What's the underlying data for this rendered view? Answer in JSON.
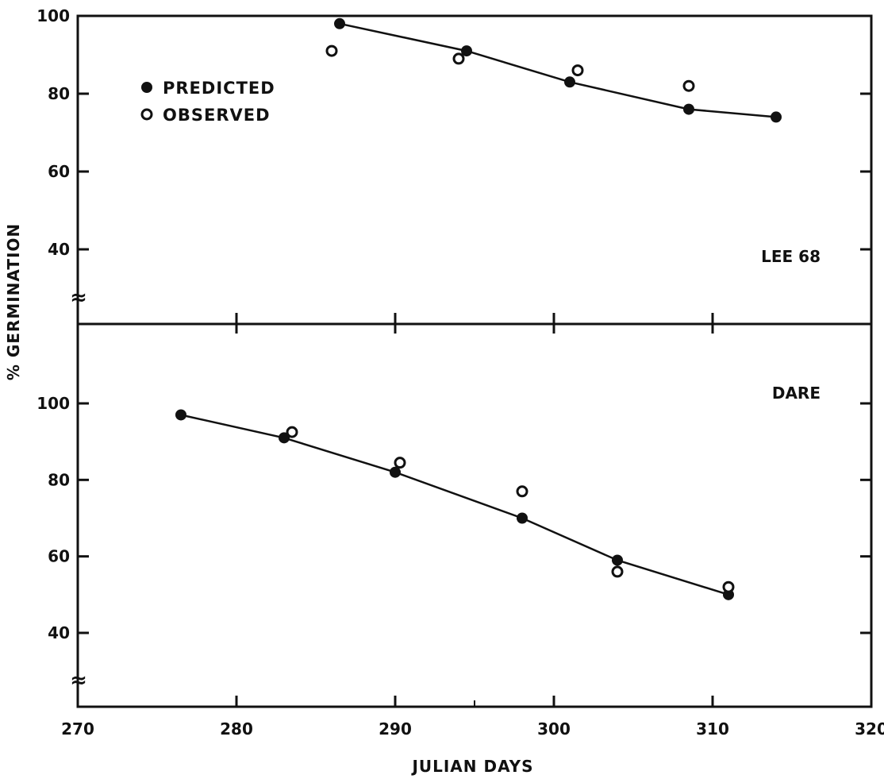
{
  "chart_data": {
    "type": "scatter",
    "xlabel": "JULIAN DAYS",
    "ylabel": "% GERMINATION",
    "xlim": [
      270,
      320
    ],
    "x_ticks": [
      270,
      280,
      290,
      300,
      310,
      320
    ],
    "grid": false,
    "legend": {
      "placement": "top-left",
      "entries": [
        {
          "label": "PREDICTED",
          "marker": "filled-circle"
        },
        {
          "label": "OBSERVED",
          "marker": "open-circle"
        }
      ]
    },
    "axis_break_symbol": "≈",
    "panels": [
      {
        "label": "LEE 68",
        "ylim": [
          40,
          100
        ],
        "y_ticks": [
          40,
          60,
          80,
          100
        ],
        "series": [
          {
            "name": "PREDICTED",
            "marker": "filled",
            "line": true,
            "x": [
              286.5,
              294.5,
              301,
              308.5,
              314
            ],
            "y": [
              98,
              91,
              83,
              76,
              74
            ]
          },
          {
            "name": "OBSERVED",
            "marker": "open",
            "line": false,
            "x": [
              286,
              294,
              301.5,
              308.5
            ],
            "y": [
              91,
              89,
              86,
              82
            ]
          }
        ]
      },
      {
        "label": "DARE",
        "ylim": [
          40,
          100
        ],
        "y_ticks": [
          40,
          60,
          80,
          100
        ],
        "series": [
          {
            "name": "PREDICTED",
            "marker": "filled",
            "line": true,
            "x": [
              276.5,
              283,
              290,
              298,
              304,
              311
            ],
            "y": [
              97,
              91,
              82,
              70,
              59,
              50
            ]
          },
          {
            "name": "OBSERVED",
            "marker": "open",
            "line": false,
            "x": [
              283.5,
              290.3,
              298,
              304,
              311
            ],
            "y": [
              92.5,
              84.5,
              77,
              56,
              52
            ]
          }
        ]
      }
    ]
  }
}
